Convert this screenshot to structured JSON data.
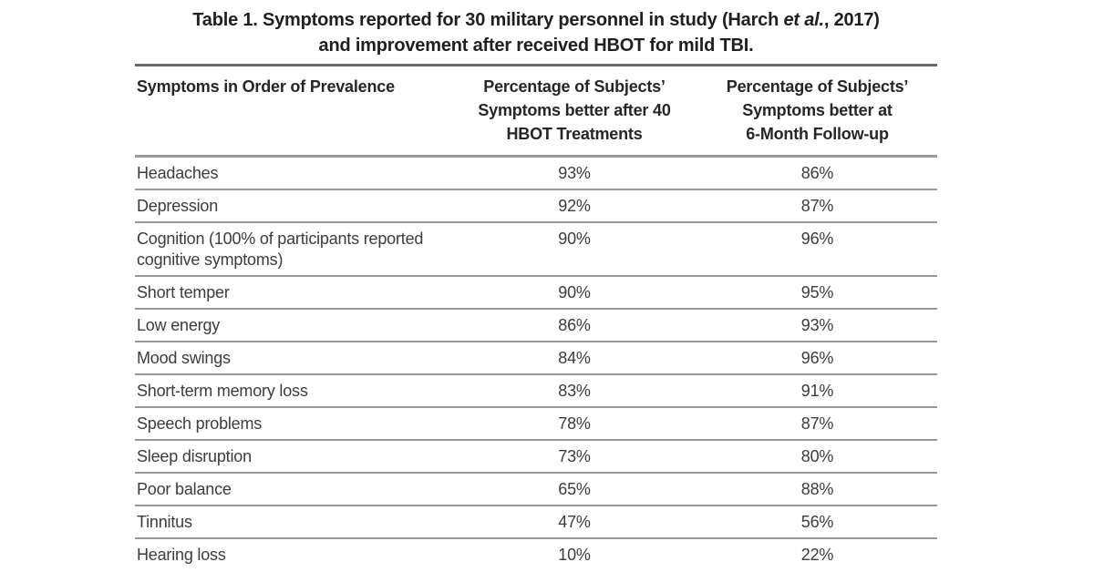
{
  "caption": {
    "line1_pre": "Table 1. Symptoms reported for 30 military personnel in study (Harch ",
    "line1_italic": "et al.",
    "line1_post": ", 2017)",
    "line2": "and improvement after received HBOT for mild TBI."
  },
  "table": {
    "header_lines": [
      [
        "Symptoms in Order of Prevalence"
      ],
      [
        "Percentage of Subjects’",
        "Symptoms better after 40",
        "HBOT Treatments"
      ],
      [
        "Percentage of Subjects’",
        "Symptoms better at",
        "6-Month Follow-up"
      ]
    ]
  },
  "chart_data": {
    "type": "table",
    "title": "Table 1. Symptoms reported for 30 military personnel in study (Harch et al., 2017) and improvement after received HBOT for mild TBI.",
    "columns": [
      "Symptoms in Order of Prevalence",
      "Percentage of Subjects’ Symptoms better after 40 HBOT Treatments",
      "Percentage of Subjects’ Symptoms better at 6-Month Follow-up"
    ],
    "rows": [
      [
        "Headaches",
        "93%",
        "86%"
      ],
      [
        "Depression",
        "92%",
        "87%"
      ],
      [
        "Cognition (100% of participants reported cognitive symptoms)",
        "90%",
        "96%"
      ],
      [
        "Short temper",
        "90%",
        "95%"
      ],
      [
        "Low energy",
        "86%",
        "93%"
      ],
      [
        "Mood swings",
        "84%",
        "96%"
      ],
      [
        "Short-term memory loss",
        "83%",
        "91%"
      ],
      [
        "Speech problems",
        "78%",
        "87%"
      ],
      [
        "Sleep disruption",
        "73%",
        "80%"
      ],
      [
        "Poor balance",
        "65%",
        "88%"
      ],
      [
        "Tinnitus",
        "47%",
        "56%"
      ],
      [
        "Hearing loss",
        "10%",
        "22%"
      ]
    ],
    "layout": {
      "background_color": "#ffffff",
      "text_color": "#3c3c3c",
      "heading_color": "#1f1f1f",
      "top_rule_color": "#6a6a6a",
      "row_rule_color": "#9a9a9a",
      "grid": "horizontal-rules-only"
    }
  }
}
